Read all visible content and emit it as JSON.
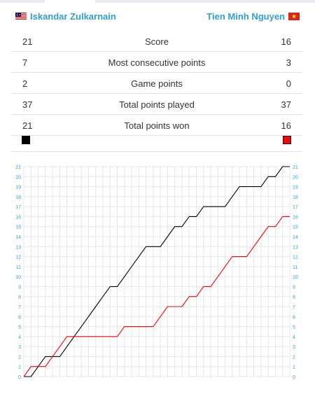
{
  "players": {
    "left": {
      "name": "Iskandar Zulkarnain",
      "flag": "malaysia-flag-icon",
      "color": "#000000"
    },
    "right": {
      "name": "Tien Minh Nguyen",
      "flag": "vietnam-flag-icon",
      "color": "#ff0000"
    }
  },
  "stats": [
    {
      "label": "Score",
      "left": "21",
      "right": "16"
    },
    {
      "label": "Most consecutive points",
      "left": "7",
      "right": "3"
    },
    {
      "label": "Game points",
      "left": "2",
      "right": "0"
    },
    {
      "label": "Total points played",
      "left": "37",
      "right": "37"
    },
    {
      "label": "Total points won",
      "left": "21",
      "right": "16"
    }
  ],
  "chart_data": {
    "type": "line",
    "xlim": [
      0,
      37
    ],
    "ylim": [
      0,
      21
    ],
    "y_ticks": [
      "0",
      "1",
      "2",
      "3",
      "4",
      "5",
      "6",
      "7",
      "8",
      "9",
      "10",
      "11",
      "12",
      "13",
      "14",
      "15",
      "16",
      "17",
      "18",
      "19",
      "20",
      "21"
    ],
    "grid": true,
    "series": [
      {
        "color": "#000000",
        "y": [
          0,
          0,
          1,
          2,
          2,
          2,
          3,
          4,
          5,
          6,
          7,
          8,
          9,
          9,
          10,
          11,
          12,
          13,
          13,
          13,
          14,
          15,
          15,
          16,
          16,
          17,
          17,
          17,
          17,
          18,
          19,
          19,
          19,
          19,
          20,
          20,
          21,
          21
        ]
      },
      {
        "color": "#ff0000",
        "y": [
          0,
          1,
          1,
          1,
          2,
          3,
          4,
          4,
          4,
          4,
          4,
          4,
          4,
          4,
          5,
          5,
          5,
          5,
          5,
          6,
          7,
          7,
          7,
          8,
          8,
          9,
          9,
          10,
          11,
          12,
          12,
          12,
          13,
          14,
          15,
          15,
          16,
          16
        ]
      }
    ]
  }
}
